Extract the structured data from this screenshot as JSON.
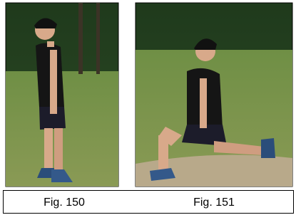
{
  "figures": [
    {
      "caption": "Fig. 150"
    },
    {
      "caption": "Fig. 151"
    }
  ]
}
